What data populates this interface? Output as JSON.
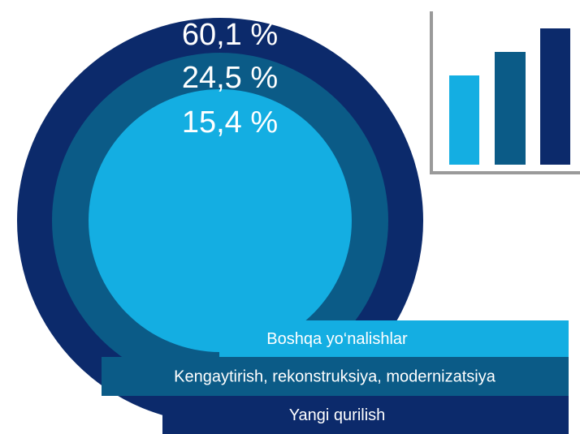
{
  "chart_data": {
    "type": "nested-circles",
    "categories": [
      "Yangi qurilish",
      "Kengaytirish, rekonstruksiya, modernizatsiya",
      "Boshqa yo‘nalishlar"
    ],
    "values": [
      60.1,
      24.5,
      15.4
    ],
    "value_labels": [
      "60,1 %",
      "24,5 %",
      "15,4 %"
    ],
    "colors": [
      "#0c2a6b",
      "#0b5b87",
      "#14aee2"
    ]
  }
}
